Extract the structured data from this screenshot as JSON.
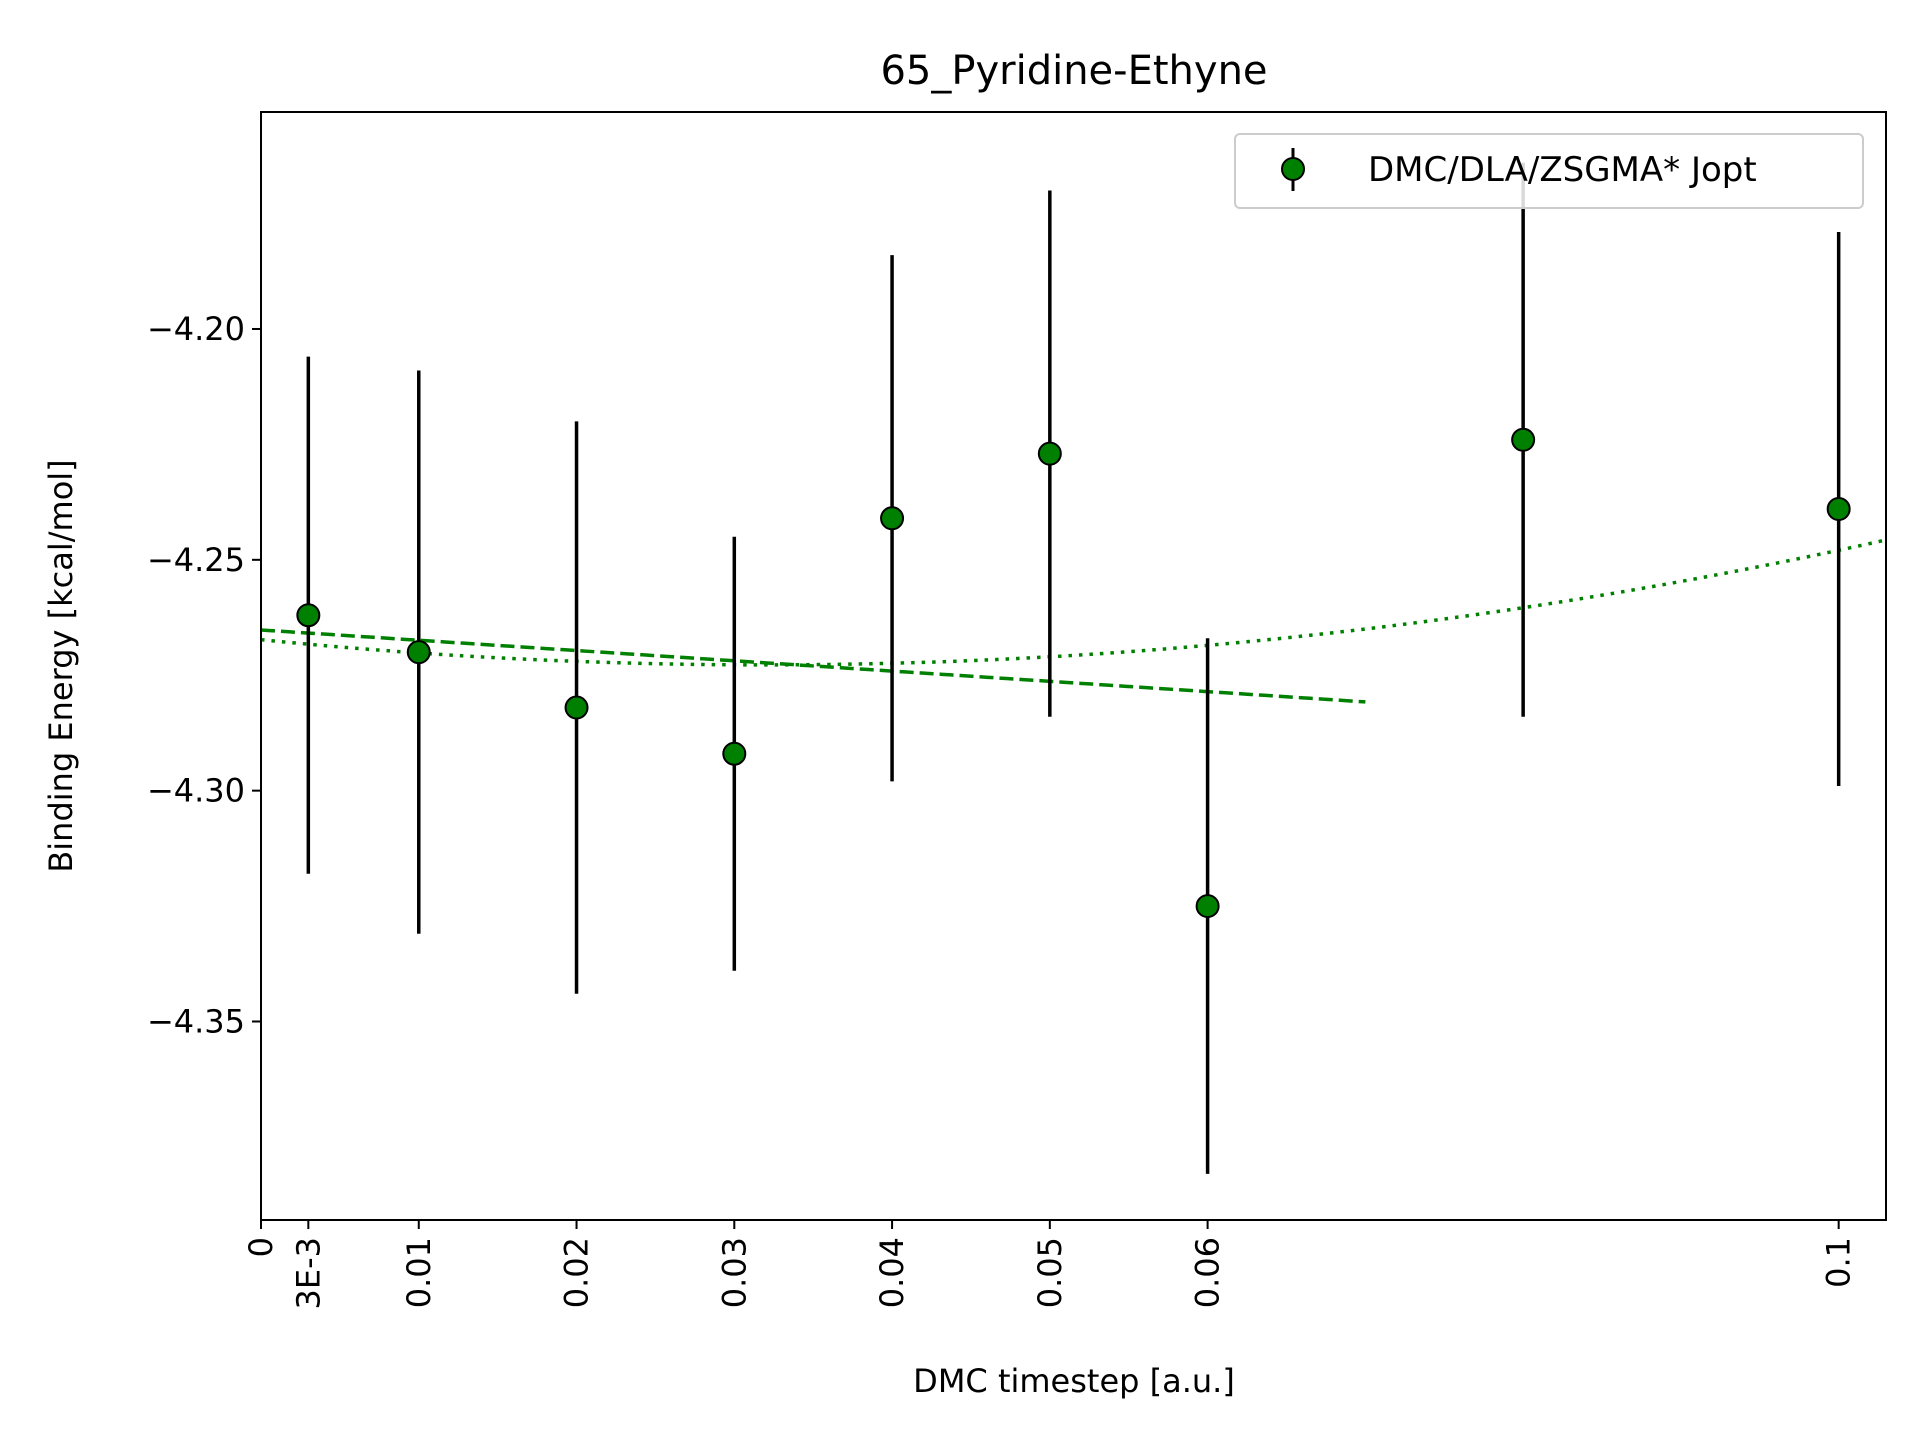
{
  "chart_data": {
    "type": "scatter",
    "title": "65_Pyridine-Ethyne",
    "xlabel": "DMC timestep [a.u.]",
    "ylabel": "Binding Energy [kcal/mol]",
    "xlim": [
      0,
      0.103
    ],
    "ylim": [
      -4.393,
      -4.153
    ],
    "xticks": [
      {
        "value": 0,
        "label": "0"
      },
      {
        "value": 0.003,
        "label": "3E-3"
      },
      {
        "value": 0.01,
        "label": "0.01"
      },
      {
        "value": 0.02,
        "label": "0.02"
      },
      {
        "value": 0.03,
        "label": "0.03"
      },
      {
        "value": 0.04,
        "label": "0.04"
      },
      {
        "value": 0.05,
        "label": "0.05"
      },
      {
        "value": 0.06,
        "label": "0.06"
      },
      {
        "value": 0.1,
        "label": "0.1"
      }
    ],
    "yticks": [
      {
        "value": -4.2,
        "label": "−4.20"
      },
      {
        "value": -4.25,
        "label": "−4.25"
      },
      {
        "value": -4.3,
        "label": "−4.30"
      },
      {
        "value": -4.35,
        "label": "−4.35"
      }
    ],
    "series": [
      {
        "name": "DMC/DLA/ZSGMA* Jopt",
        "color": "#008000",
        "errorbar_color": "#000000",
        "points": [
          {
            "x": 0.003,
            "y": -4.262,
            "err": 0.056
          },
          {
            "x": 0.01,
            "y": -4.27,
            "err": 0.061
          },
          {
            "x": 0.02,
            "y": -4.282,
            "err": 0.062
          },
          {
            "x": 0.03,
            "y": -4.292,
            "err": 0.047
          },
          {
            "x": 0.04,
            "y": -4.241,
            "err": 0.057
          },
          {
            "x": 0.05,
            "y": -4.227,
            "err": 0.057
          },
          {
            "x": 0.06,
            "y": -4.325,
            "err": 0.058
          },
          {
            "x": 0.08,
            "y": -4.224,
            "err": 0.06
          },
          {
            "x": 0.1,
            "y": -4.239,
            "err": 0.06
          }
        ]
      }
    ],
    "fits": [
      {
        "style": "dashed",
        "color": "#008000",
        "coeffs": [
          -4.2652,
          -0.2225,
          0
        ],
        "xrange": [
          0,
          0.07
        ]
      },
      {
        "style": "dotted",
        "color": "#008000",
        "coeffs": [
          -4.2673,
          -0.3418,
          5.3546
        ],
        "xrange": [
          0,
          0.103
        ]
      }
    ],
    "legend_position": "upper-right",
    "grid": false
  }
}
